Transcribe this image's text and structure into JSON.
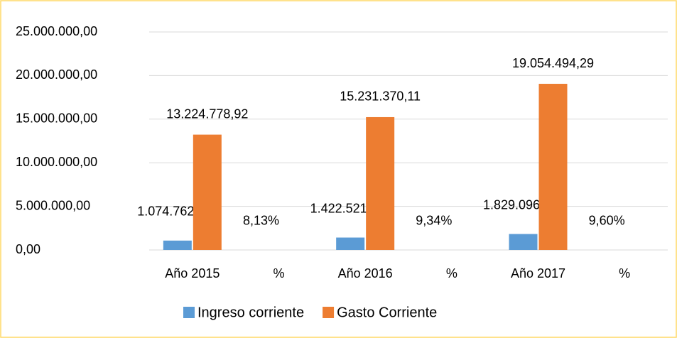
{
  "chart_data": {
    "type": "bar",
    "categories": [
      "Año 2015",
      "%",
      "Año 2016",
      "%",
      "Año 2017",
      "%"
    ],
    "series": [
      {
        "name": "Ingreso corriente",
        "color": "#5b9bd5",
        "values": [
          1074762.79,
          8.13,
          1422521.71,
          9.34,
          1829096.25,
          9.6
        ],
        "value_labels": [
          "1.074.762,79",
          "8,13%",
          "1.422.521,71",
          "9,34%",
          "1.829.096,25",
          "9,60%"
        ]
      },
      {
        "name": "Gasto Corriente",
        "color": "#ed7d31",
        "values": [
          13224778.92,
          null,
          15231370.11,
          null,
          19054494.29,
          null
        ],
        "value_labels": [
          "13.224.778,92",
          null,
          "15.231.370,11",
          null,
          "19.054.494,29",
          null
        ]
      }
    ],
    "ylim": [
      0,
      25000000
    ],
    "yticks": [
      {
        "value": 0,
        "label": "0,00"
      },
      {
        "value": 5000000,
        "label": "5.000.000,00"
      },
      {
        "value": 10000000,
        "label": "10.000.000,00"
      },
      {
        "value": 15000000,
        "label": "15.000.000,00"
      },
      {
        "value": 20000000,
        "label": "20.000.000,00"
      },
      {
        "value": 25000000,
        "label": "25.000.000,00"
      }
    ],
    "grid": true,
    "legend": "bottom"
  }
}
